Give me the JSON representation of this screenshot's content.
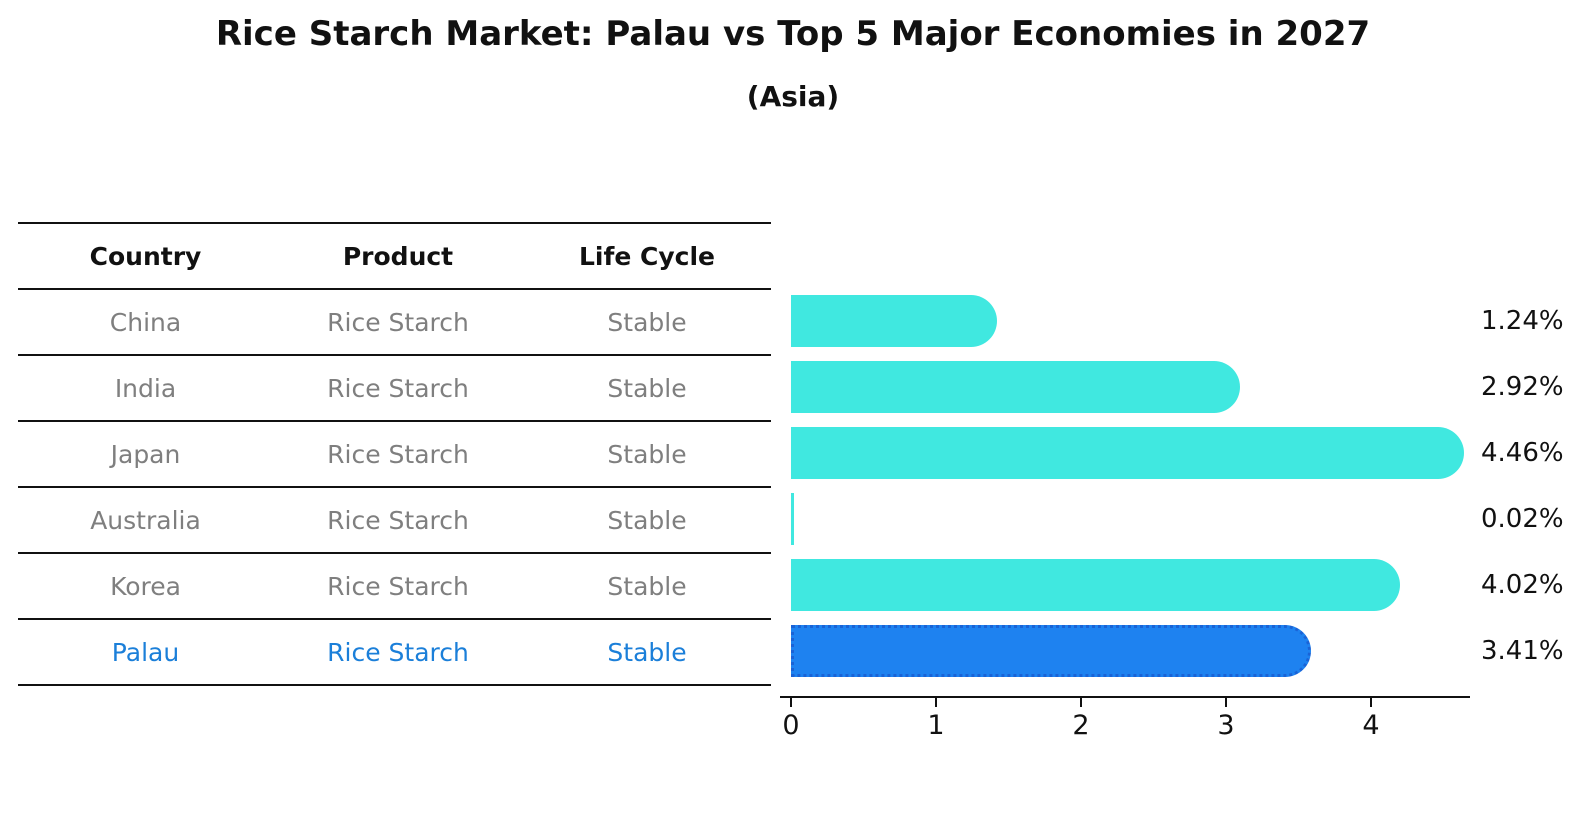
{
  "title": "Rice Starch Market: Palau vs Top 5 Major Economies in 2027",
  "subtitle": "(Asia)",
  "table": {
    "columns": [
      "Country",
      "Product",
      "Life Cycle"
    ],
    "rows": [
      {
        "country": "China",
        "product": "Rice Starch",
        "life_cycle": "Stable"
      },
      {
        "country": "India",
        "product": "Rice Starch",
        "life_cycle": "Stable"
      },
      {
        "country": "Japan",
        "product": "Rice Starch",
        "life_cycle": "Stable"
      },
      {
        "country": "Australia",
        "product": "Rice Starch",
        "life_cycle": "Stable"
      },
      {
        "country": "Korea",
        "product": "Rice Starch",
        "life_cycle": "Stable"
      },
      {
        "country": "Palau",
        "product": "Rice Starch",
        "life_cycle": "Stable"
      }
    ]
  },
  "chart_data": {
    "type": "bar",
    "orientation": "horizontal",
    "title": "Rice Starch Market: Palau vs Top 5 Major Economies in 2027",
    "subtitle": "(Asia)",
    "categories": [
      "China",
      "India",
      "Japan",
      "Australia",
      "Korea",
      "Palau"
    ],
    "values": [
      1.24,
      2.92,
      4.46,
      0.02,
      4.02,
      3.41
    ],
    "value_labels": [
      "1.24%",
      "2.92%",
      "4.46%",
      "0.02%",
      "4.02%",
      "3.41%"
    ],
    "x_ticks": [
      "0",
      "1",
      "2",
      "3",
      "4"
    ],
    "xlim": [
      0,
      4.72
    ],
    "grid": false,
    "legend": "none",
    "bar_color": "#40E8E0",
    "highlight_index": 5,
    "highlight_bar_color": "#1E82F0",
    "highlight_border_color": "#1a63d6"
  },
  "colors": {
    "text": "#111111",
    "muted_text": "#7f7f7f",
    "highlight_text": "#1b7fd9",
    "line": "#111111"
  }
}
